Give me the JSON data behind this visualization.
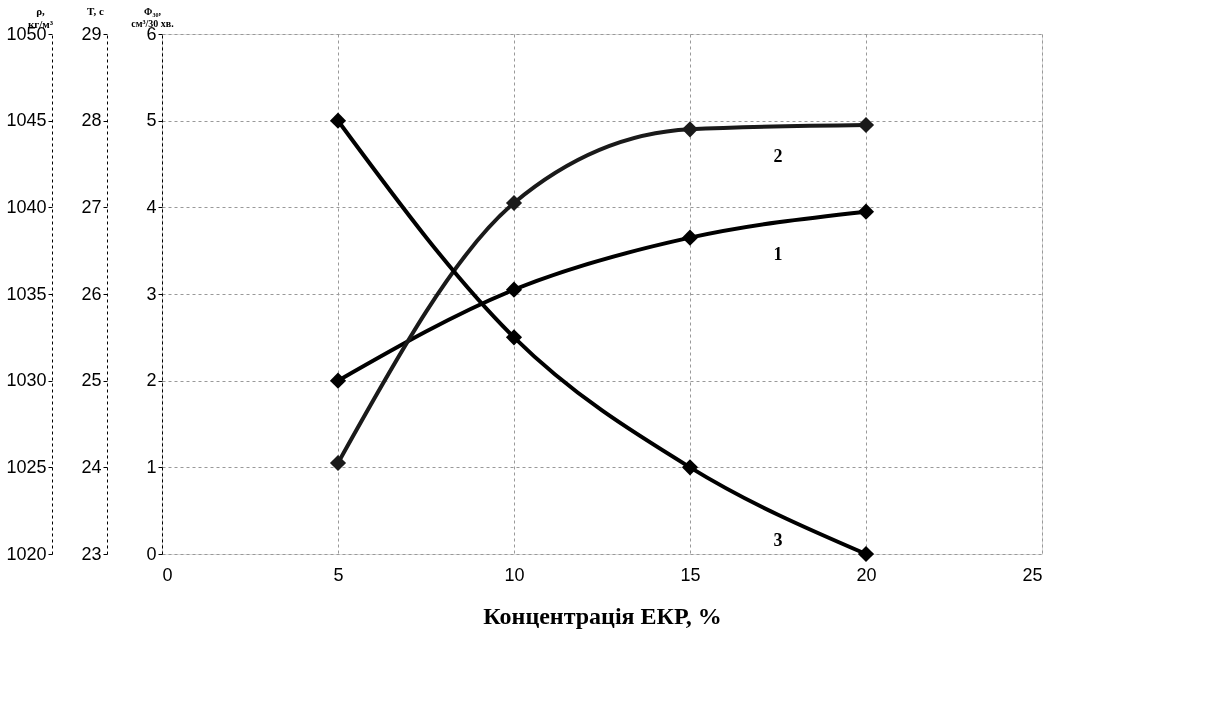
{
  "chart_data": {
    "type": "line",
    "xlabel": "Концентрація ЕКР, %",
    "ylabel": "Φ₃₀,\nсм³/30 хв.",
    "y2label": "T, c",
    "y3label": "ρ,\nкг/м³",
    "x": [
      5,
      10,
      15,
      20
    ],
    "xlim": [
      0,
      25
    ],
    "xticks": [
      0,
      5,
      10,
      15,
      20,
      25
    ],
    "ylim": [
      0,
      6
    ],
    "yticks": [
      0,
      1,
      2,
      3,
      4,
      5,
      6
    ],
    "y2lim": [
      23,
      29
    ],
    "y2ticks": [
      23,
      24,
      25,
      26,
      27,
      28,
      29
    ],
    "y3lim": [
      1020,
      1050
    ],
    "y3ticks": [
      1020,
      1025,
      1030,
      1035,
      1040,
      1045,
      1050
    ],
    "series": [
      {
        "name": "1",
        "color": "#000000",
        "values": [
          2.0,
          3.05,
          3.65,
          3.95
        ]
      },
      {
        "name": "2",
        "color": "#1a1a1a",
        "values": [
          1.05,
          4.05,
          4.9,
          4.95
        ]
      },
      {
        "name": "3",
        "color": "#000000",
        "values": [
          5.0,
          2.5,
          1.0,
          0.0
        ]
      }
    ],
    "marker": "diamond",
    "line_style": "solid",
    "grid": true,
    "legend": false
  }
}
